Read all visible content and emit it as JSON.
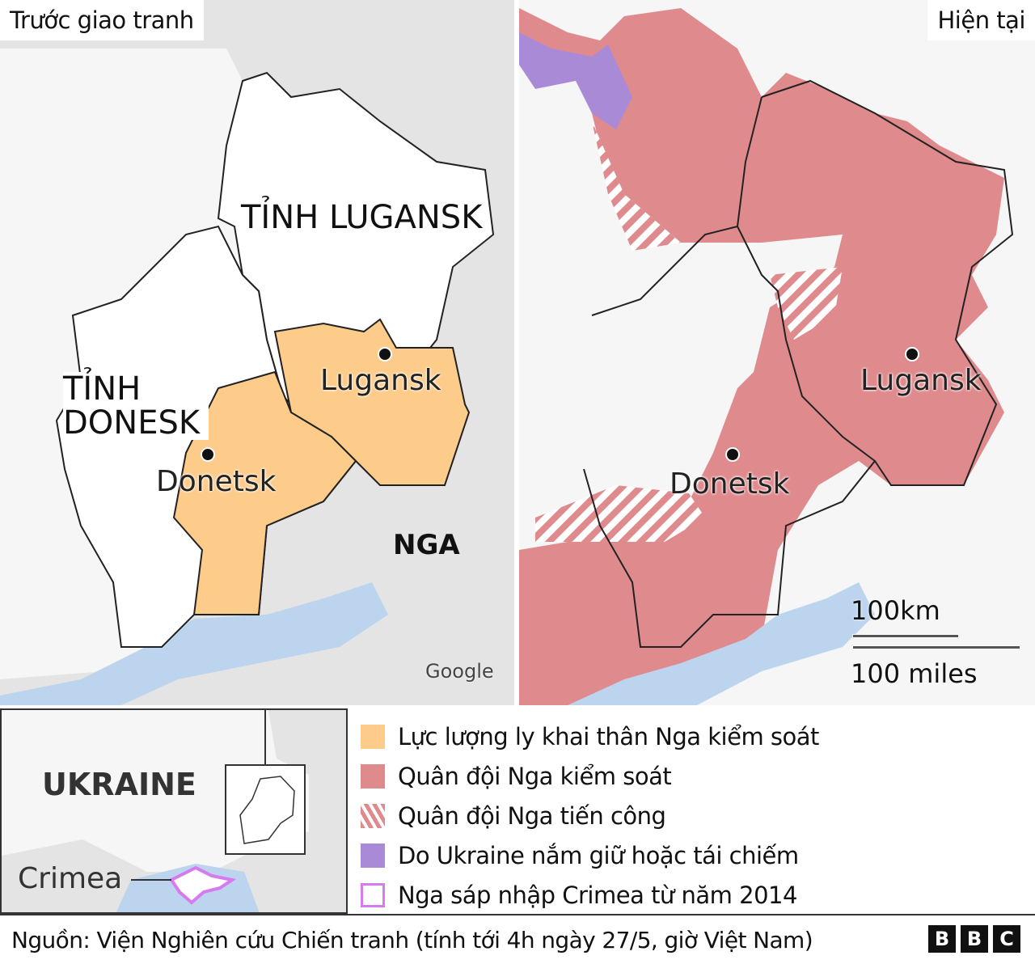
{
  "left_map": {
    "title": "Trước giao tranh",
    "region_lugansk": "TỈNH LUGANSK",
    "region_donetsk": "TỈNH DONESK",
    "city_lugansk": "Lugansk",
    "city_donetsk": "Donetsk",
    "country": "NGA",
    "attribution": "Google"
  },
  "right_map": {
    "title": "Hiện tại",
    "city_lugansk": "Lugansk",
    "city_donetsk": "Donetsk",
    "scale_km": "100km",
    "scale_miles": "100 miles"
  },
  "inset": {
    "country": "UKRAINE",
    "crimea": "Crimea"
  },
  "legend": {
    "items": [
      {
        "label": "Lực lượng ly khai thân Nga kiểm soát",
        "color": "#fdcb8a"
      },
      {
        "label": "Quân đội Nga kiểm soát",
        "color": "#df8a8d"
      },
      {
        "label": "Quân đội Nga tiến công",
        "color": "#df8a8d"
      },
      {
        "label": "Do Ukraine nắm giữ hoặc tái chiếm",
        "color": "#a98ad6"
      },
      {
        "label": "Nga sáp nhập Crimea từ năm 2014",
        "color": "#d67af0"
      }
    ]
  },
  "footer": {
    "source": "Nguồn: Viện Nghiên cứu Chiến tranh (tính tới 4h ngày 27/5, giờ Việt Nam)",
    "logo": [
      "B",
      "B",
      "C"
    ]
  }
}
